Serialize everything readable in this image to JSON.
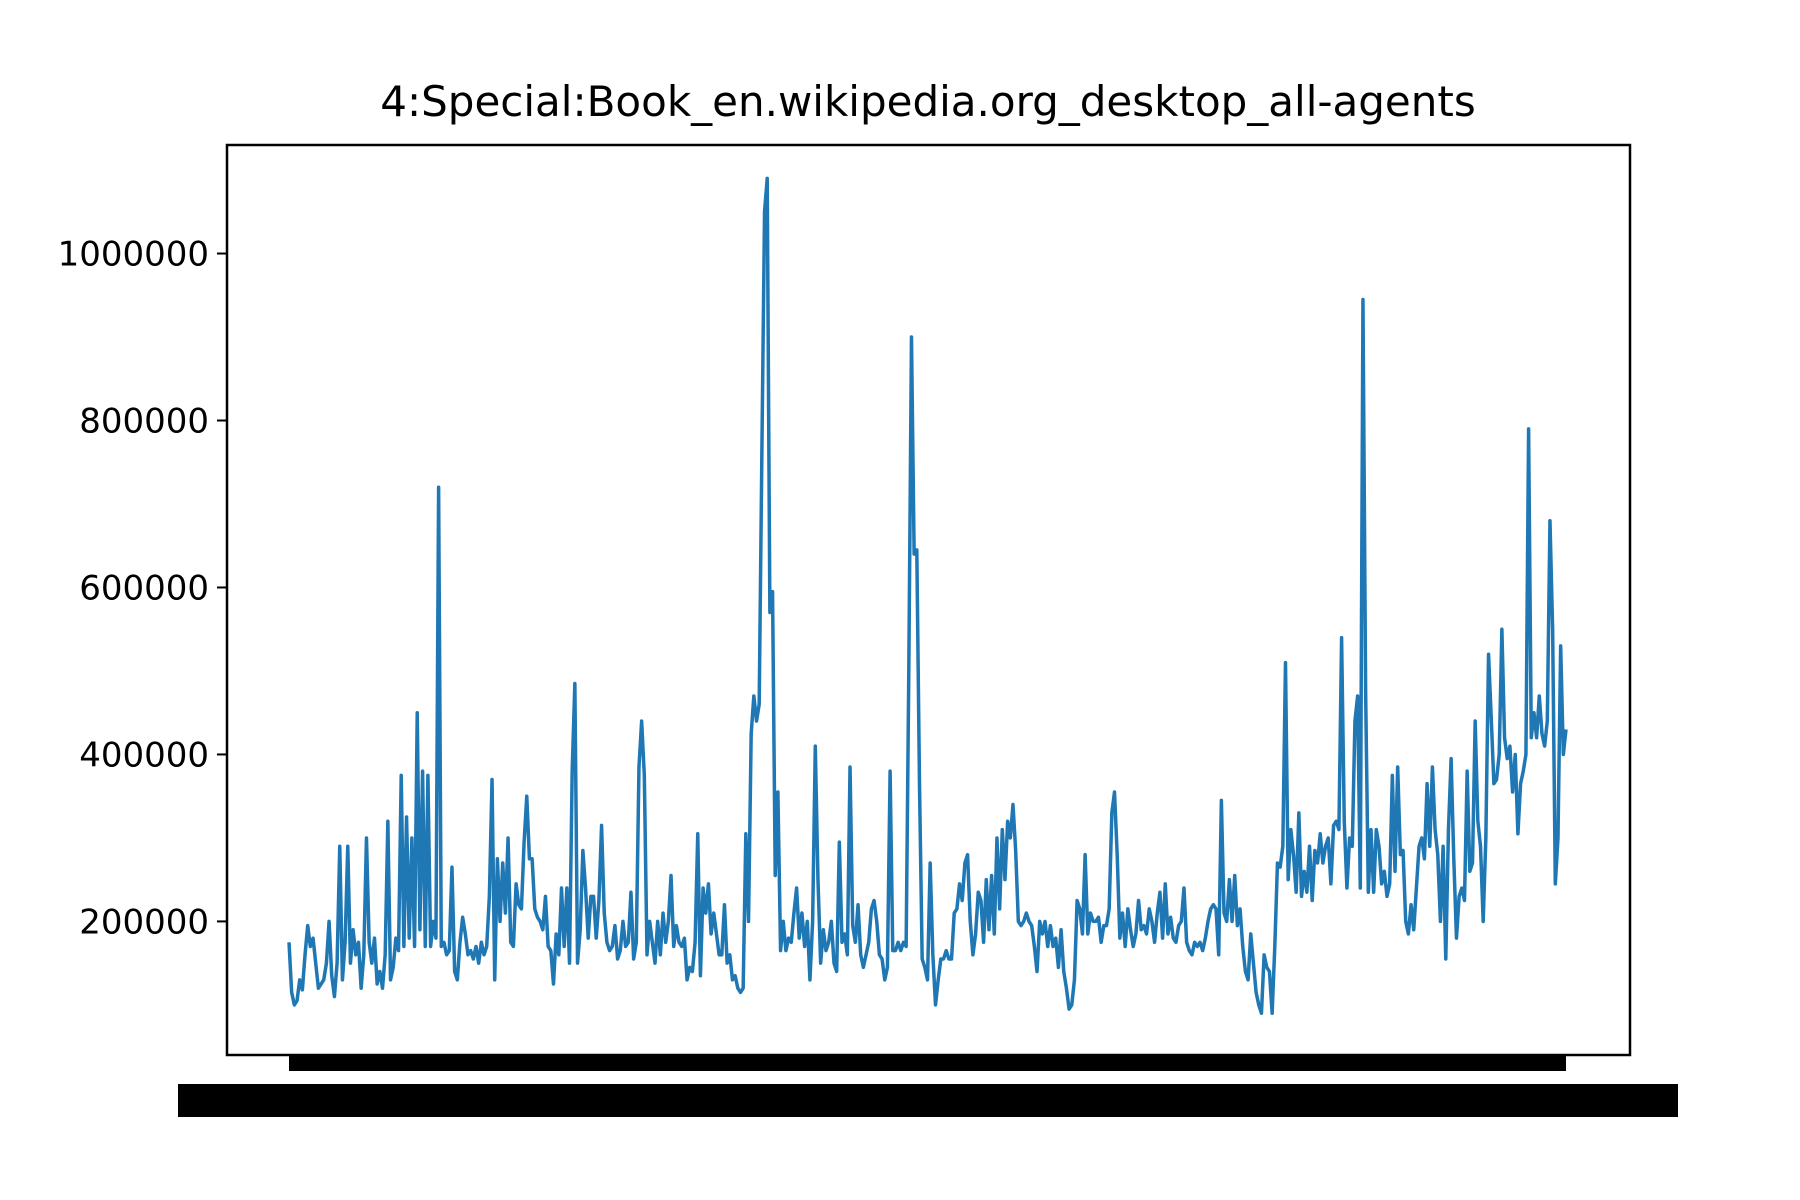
{
  "chart_data": {
    "type": "line",
    "title": "4:Special:Book_en.wikipedia.org_desktop_all-agents",
    "xlabel": "",
    "ylabel": "",
    "ylim": [
      40000,
      1130000
    ],
    "yticks": [
      200000,
      400000,
      600000,
      800000,
      1000000
    ],
    "grid": false,
    "line_color": "#1f77b4",
    "x_ticks_overlapping": true,
    "series": [
      {
        "values": [
          175000,
          115000,
          100000,
          105000,
          130000,
          118000,
          160000,
          195000,
          170000,
          180000,
          150000,
          120000,
          125000,
          130000,
          150000,
          200000,
          135000,
          110000,
          150000,
          290000,
          130000,
          175000,
          290000,
          150000,
          190000,
          160000,
          175000,
          120000,
          160000,
          300000,
          175000,
          150000,
          180000,
          125000,
          140000,
          120000,
          160000,
          320000,
          130000,
          145000,
          180000,
          165000,
          375000,
          170000,
          325000,
          180000,
          300000,
          170000,
          450000,
          190000,
          380000,
          170000,
          375000,
          170000,
          200000,
          180000,
          720000,
          170000,
          175000,
          160000,
          165000,
          265000,
          140000,
          130000,
          175000,
          205000,
          185000,
          160000,
          165000,
          155000,
          170000,
          150000,
          175000,
          160000,
          170000,
          230000,
          370000,
          130000,
          275000,
          200000,
          270000,
          210000,
          300000,
          175000,
          170000,
          245000,
          220000,
          215000,
          295000,
          350000,
          275000,
          275000,
          215000,
          205000,
          200000,
          190000,
          230000,
          170000,
          165000,
          125000,
          185000,
          160000,
          240000,
          170000,
          240000,
          150000,
          380000,
          485000,
          150000,
          190000,
          285000,
          240000,
          180000,
          230000,
          230000,
          180000,
          225000,
          315000,
          210000,
          175000,
          165000,
          170000,
          195000,
          155000,
          165000,
          200000,
          170000,
          175000,
          235000,
          155000,
          175000,
          385000,
          440000,
          375000,
          160000,
          200000,
          175000,
          150000,
          200000,
          160000,
          210000,
          175000,
          200000,
          255000,
          170000,
          195000,
          175000,
          170000,
          180000,
          130000,
          145000,
          140000,
          175000,
          305000,
          135000,
          240000,
          210000,
          245000,
          185000,
          210000,
          185000,
          160000,
          160000,
          220000,
          150000,
          160000,
          130000,
          135000,
          120000,
          115000,
          120000,
          305000,
          200000,
          425000,
          470000,
          440000,
          460000,
          760000,
          1050000,
          1090000,
          570000,
          595000,
          255000,
          355000,
          165000,
          200000,
          165000,
          180000,
          175000,
          210000,
          240000,
          180000,
          210000,
          170000,
          200000,
          130000,
          200000,
          410000,
          250000,
          150000,
          190000,
          165000,
          175000,
          200000,
          150000,
          140000,
          295000,
          175000,
          185000,
          160000,
          385000,
          195000,
          175000,
          220000,
          160000,
          145000,
          160000,
          175000,
          215000,
          225000,
          200000,
          160000,
          155000,
          130000,
          145000,
          380000,
          165000,
          165000,
          175000,
          165000,
          175000,
          170000,
          500000,
          900000,
          640000,
          645000,
          365000,
          155000,
          145000,
          130000,
          270000,
          160000,
          100000,
          130000,
          155000,
          155000,
          165000,
          155000,
          155000,
          210000,
          215000,
          245000,
          225000,
          270000,
          280000,
          200000,
          160000,
          185000,
          235000,
          225000,
          175000,
          250000,
          190000,
          255000,
          185000,
          300000,
          215000,
          310000,
          250000,
          320000,
          300000,
          340000,
          285000,
          200000,
          195000,
          200000,
          210000,
          200000,
          195000,
          170000,
          140000,
          200000,
          185000,
          200000,
          170000,
          195000,
          170000,
          180000,
          145000,
          190000,
          140000,
          120000,
          95000,
          100000,
          130000,
          225000,
          215000,
          185000,
          280000,
          185000,
          210000,
          200000,
          200000,
          205000,
          175000,
          195000,
          195000,
          215000,
          330000,
          355000,
          280000,
          180000,
          210000,
          170000,
          215000,
          190000,
          170000,
          185000,
          225000,
          190000,
          195000,
          185000,
          215000,
          200000,
          175000,
          210000,
          235000,
          180000,
          245000,
          185000,
          205000,
          180000,
          175000,
          195000,
          200000,
          240000,
          175000,
          165000,
          160000,
          175000,
          170000,
          175000,
          165000,
          180000,
          200000,
          215000,
          220000,
          215000,
          160000,
          345000,
          210000,
          200000,
          250000,
          200000,
          255000,
          195000,
          215000,
          170000,
          140000,
          130000,
          185000,
          150000,
          115000,
          100000,
          90000,
          160000,
          145000,
          140000,
          90000,
          170000,
          270000,
          265000,
          290000,
          510000,
          250000,
          310000,
          280000,
          235000,
          330000,
          230000,
          260000,
          235000,
          290000,
          225000,
          285000,
          270000,
          305000,
          270000,
          290000,
          300000,
          245000,
          315000,
          320000,
          310000,
          540000,
          320000,
          240000,
          300000,
          290000,
          440000,
          470000,
          240000,
          945000,
          475000,
          235000,
          310000,
          235000,
          310000,
          290000,
          245000,
          260000,
          230000,
          245000,
          375000,
          260000,
          385000,
          280000,
          285000,
          200000,
          185000,
          220000,
          190000,
          240000,
          290000,
          300000,
          275000,
          365000,
          290000,
          385000,
          310000,
          280000,
          200000,
          290000,
          155000,
          310000,
          395000,
          275000,
          180000,
          230000,
          240000,
          225000,
          380000,
          260000,
          270000,
          440000,
          320000,
          290000,
          200000,
          300000,
          520000,
          445000,
          365000,
          370000,
          400000,
          550000,
          420000,
          395000,
          410000,
          355000,
          400000,
          305000,
          365000,
          380000,
          400000,
          790000,
          420000,
          450000,
          420000,
          470000,
          425000,
          410000,
          440000,
          680000,
          550000,
          245000,
          300000,
          530000,
          400000,
          430000
        ]
      }
    ]
  }
}
